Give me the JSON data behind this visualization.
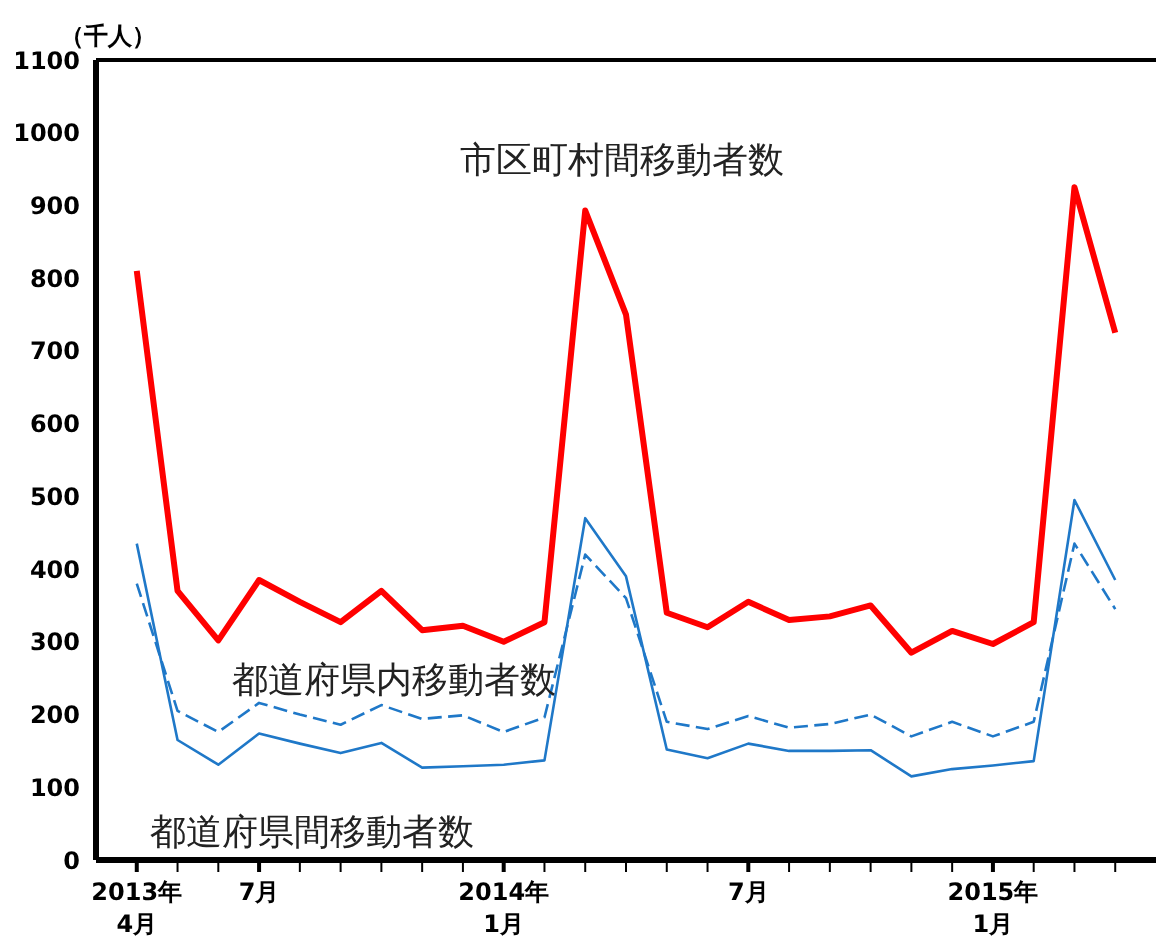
{
  "chart_data": {
    "type": "line",
    "ylabel": "（千人）",
    "categories": [
      "2013年\n4月",
      null,
      null,
      "7月",
      null,
      null,
      null,
      null,
      null,
      "2014年\n1月",
      null,
      null,
      null,
      null,
      null,
      "7月",
      null,
      null,
      null,
      null,
      null,
      "2015年\n1月",
      null,
      null,
      null
    ],
    "series": [
      {
        "name": "市区町村間移動者数",
        "color": "#ff0000",
        "line_style": "solid",
        "values": [
          810,
          370,
          302,
          385,
          355,
          327,
          370,
          316,
          322,
          300,
          327,
          893,
          750,
          340,
          320,
          355,
          330,
          335,
          350,
          285,
          315,
          297,
          327,
          925,
          725
        ]
      },
      {
        "name": "都道府県内移動者数",
        "color": "#1f78c8",
        "line_style": "dashed",
        "values": [
          380,
          205,
          176,
          216,
          200,
          186,
          213,
          194,
          199,
          176,
          196,
          420,
          360,
          190,
          180,
          198,
          182,
          187,
          200,
          170,
          190,
          170,
          190,
          435,
          345
        ]
      },
      {
        "name": "都道府県間移動者数",
        "color": "#1f78c8",
        "line_style": "solid",
        "values": [
          435,
          165,
          131,
          174,
          160,
          147,
          161,
          127,
          129,
          131,
          137,
          470,
          390,
          152,
          140,
          160,
          150,
          150,
          151,
          115,
          125,
          130,
          136,
          495,
          385
        ]
      }
    ],
    "ylim": [
      0,
      1100
    ],
    "yticks": [
      0,
      100,
      200,
      300,
      400,
      500,
      600,
      700,
      800,
      900,
      1000,
      1100
    ],
    "grid": false,
    "legend": false,
    "marker": "none"
  }
}
